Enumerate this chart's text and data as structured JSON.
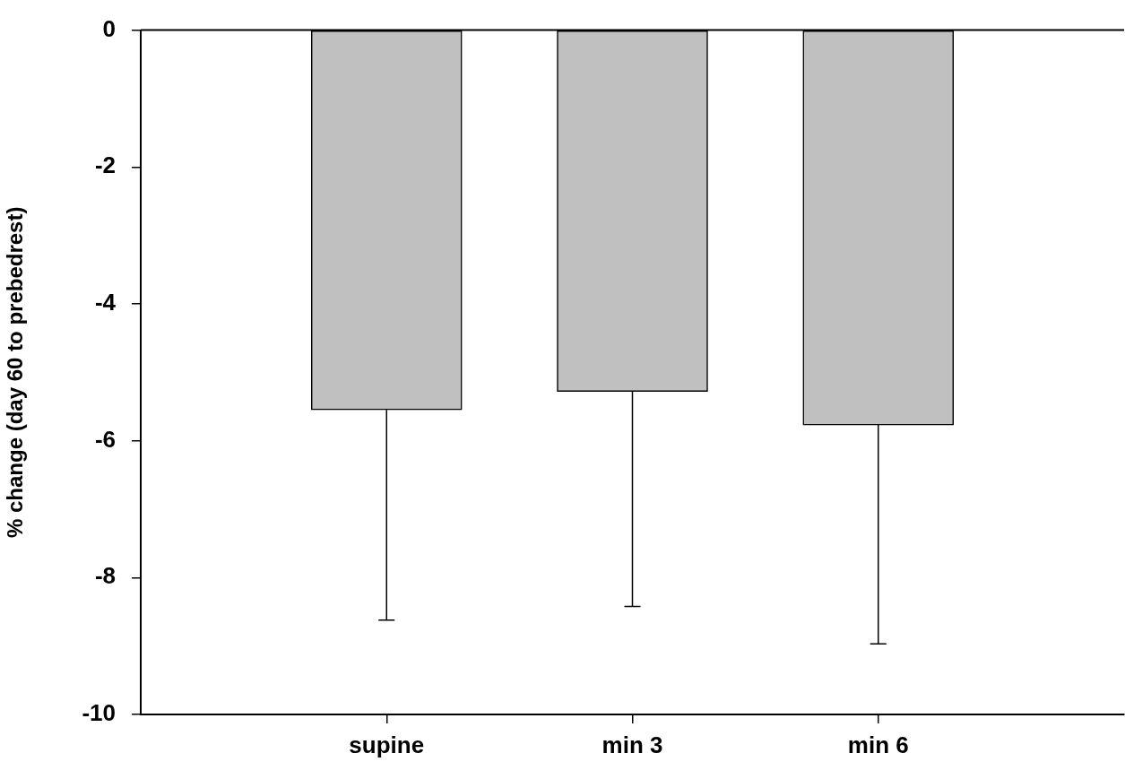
{
  "chart_data": {
    "type": "bar",
    "ylabel": "% change (day 60 to prebedrest)",
    "categories": [
      "supine",
      "min 3",
      "min 6"
    ],
    "values": [
      -5.55,
      -5.28,
      -5.77
    ],
    "errors": [
      [
        -8.62,
        -5.55
      ],
      [
        -8.42,
        -5.28
      ],
      [
        -8.97,
        -5.77
      ]
    ],
    "color": "#c0c0c0",
    "ylim": [
      -10,
      0
    ],
    "yticks": [
      -10,
      -8,
      -6,
      -4,
      -2,
      0
    ]
  }
}
